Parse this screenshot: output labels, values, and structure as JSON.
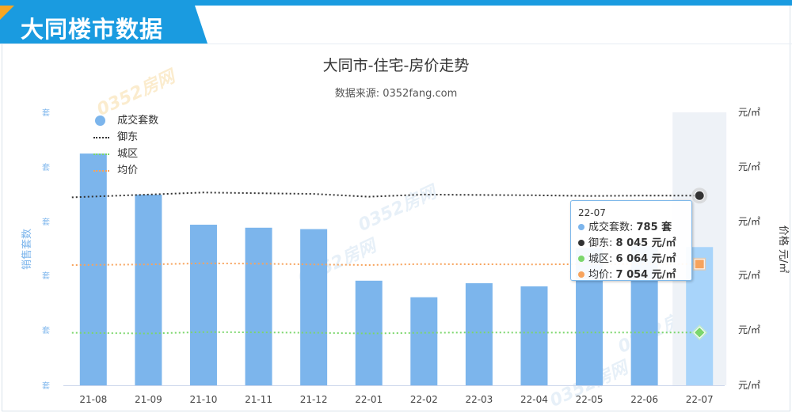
{
  "header": {
    "title": "大同楼市数据"
  },
  "chart_data": {
    "type": "bar+line",
    "title": "大同市-住宅-房价走势",
    "subtitle": "数据来源: 0352fang.com",
    "categories": [
      "21-08",
      "21-09",
      "21-10",
      "21-11",
      "21-12",
      "22-01",
      "22-02",
      "22-03",
      "22-04",
      "22-05",
      "22-06",
      "22-07"
    ],
    "bar_series": {
      "name": "成交套数",
      "color": "#7cb5ec",
      "highlight_color": "#a8d4fa",
      "values": [
        1316,
        1083,
        912,
        895,
        887,
        594,
        500,
        580,
        562,
        780,
        790,
        785
      ]
    },
    "line_series": [
      {
        "name": "御东",
        "color": "#333333",
        "values": [
          8020,
          8060,
          8090,
          8080,
          8070,
          8030,
          8060,
          8055,
          8050,
          8040,
          8045,
          8045
        ]
      },
      {
        "name": "城区",
        "color": "#7bd66b",
        "values": [
          6060,
          6050,
          6070,
          6066,
          6060,
          6050,
          6060,
          6065,
          6062,
          6064,
          6064,
          6064
        ]
      },
      {
        "name": "均价",
        "color": "#f7a35c",
        "values": [
          7040,
          7050,
          7065,
          7060,
          7050,
          7040,
          7055,
          7052,
          7050,
          7054,
          7054,
          7054
        ]
      }
    ],
    "left_axis": {
      "title": "销售套数",
      "tick_label": "套",
      "ticks": 6
    },
    "right_axis": {
      "title": "价格 元/㎡",
      "tick_label": "元/㎡",
      "ticks": 6
    },
    "hover_category_index": 11,
    "watermark": "0352房网",
    "tooltip": {
      "header": "22-07",
      "rows": [
        {
          "label": "成交套数: ",
          "value": "785 套",
          "color": "#7cb5ec"
        },
        {
          "label": "御东: ",
          "value": "8 045 元/㎡",
          "color": "#333333"
        },
        {
          "label": "城区: ",
          "value": "6 064 元/㎡",
          "color": "#7bd66b"
        },
        {
          "label": "均价: ",
          "value": "7 054 元/㎡",
          "color": "#f7a35c"
        }
      ]
    }
  }
}
